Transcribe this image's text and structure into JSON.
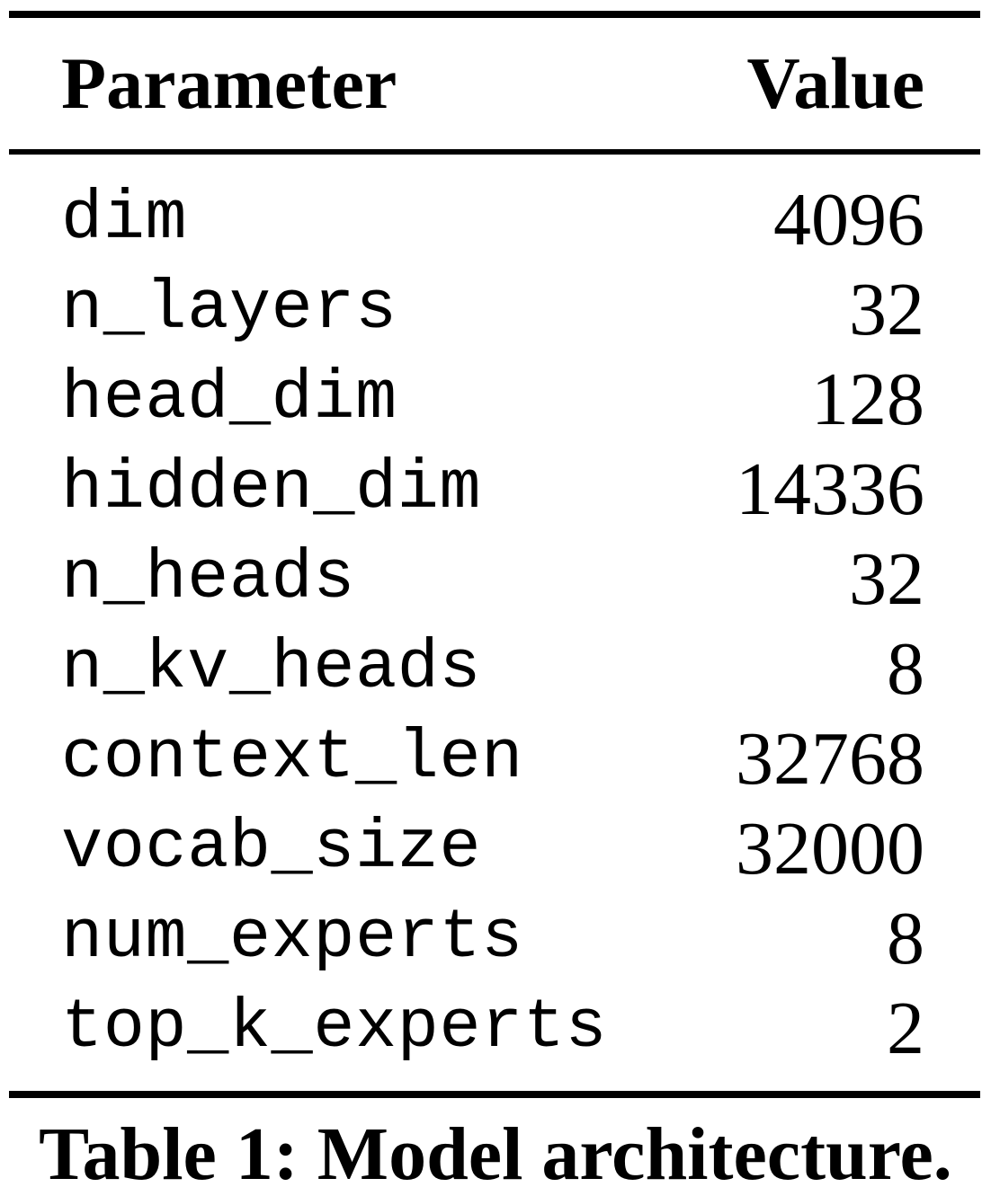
{
  "table": {
    "headers": {
      "parameter": "Parameter",
      "value": "Value"
    },
    "rows": [
      {
        "parameter": "dim",
        "value": "4096"
      },
      {
        "parameter": "n_layers",
        "value": "32"
      },
      {
        "parameter": "head_dim",
        "value": "128"
      },
      {
        "parameter": "hidden_dim",
        "value": "14336"
      },
      {
        "parameter": "n_heads",
        "value": "32"
      },
      {
        "parameter": "n_kv_heads",
        "value": "8"
      },
      {
        "parameter": "context_len",
        "value": "32768"
      },
      {
        "parameter": "vocab_size",
        "value": "32000"
      },
      {
        "parameter": "num_experts",
        "value": "8"
      },
      {
        "parameter": "top_k_experts",
        "value": "2"
      }
    ],
    "caption": "Table 1: Model architecture."
  }
}
